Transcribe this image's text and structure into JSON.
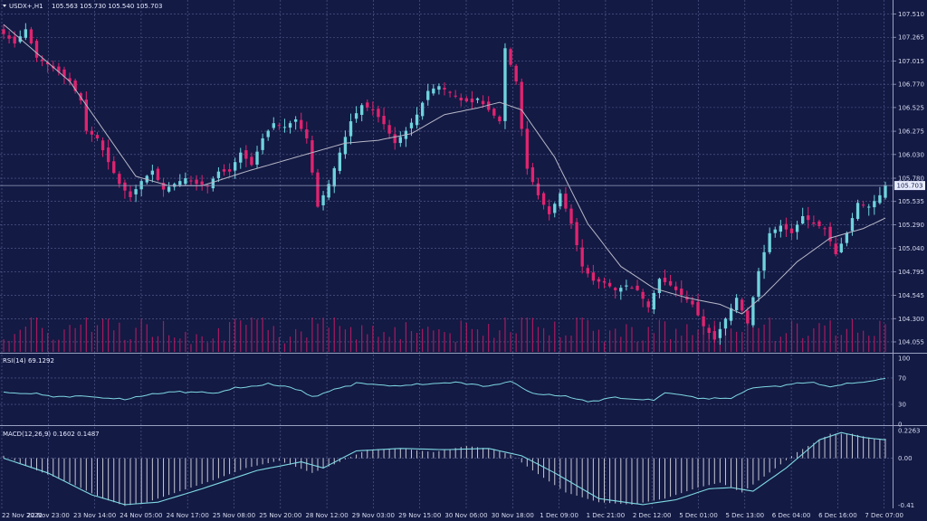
{
  "header": {
    "symbol": "USDX+,H1",
    "ohlc": "105.563 105.730 105.540 105.703"
  },
  "price_panel": {
    "current_price": "105.703",
    "price_ticks": [
      "107.510",
      "107.265",
      "107.015",
      "106.770",
      "106.525",
      "106.275",
      "106.030",
      "105.780",
      "105.535",
      "105.290",
      "105.040",
      "104.795",
      "104.545",
      "104.300",
      "104.055"
    ]
  },
  "rsi_panel": {
    "label": "RSI(14) 69.1292",
    "ticks": [
      "100",
      "70",
      "30",
      "0"
    ]
  },
  "macd_panel": {
    "label": "MACD(12,26,9) 0.1602 0.1487",
    "ticks": [
      "0.2263",
      "0.00",
      "-0.41"
    ]
  },
  "time_axis": [
    "22 Nov 2022",
    "22 Nov 23:00",
    "23 Nov 14:00",
    "24 Nov 05:00",
    "24 Nov 17:00",
    "25 Nov 08:00",
    "25 Nov 20:00",
    "28 Nov 12:00",
    "29 Nov 03:00",
    "29 Nov 15:00",
    "30 Nov 06:00",
    "30 Nov 18:00",
    "1 Dec 09:00",
    "1 Dec 21:00",
    "2 Dec 12:00",
    "5 Dec 01:00",
    "5 Dec 13:00",
    "6 Dec 04:00",
    "6 Dec 16:00",
    "7 Dec 07:00"
  ],
  "colors": {
    "background": "#131a44",
    "grid": "#5a6292",
    "bull": "#6fd3dd",
    "bear": "#e0246f",
    "ma": "#b8b8c8",
    "rsi": "#7fd8e2",
    "macd_signal": "#7fd8e2",
    "macd_hist": "#c8c8d4",
    "volume": "#c01b64"
  },
  "chart_data": {
    "type": "candlestick",
    "symbol": "USDX+",
    "timeframe": "H1",
    "y_range": [
      103.95,
      107.62
    ],
    "price_anchors": [
      [
        0,
        107.3
      ],
      [
        2,
        107.2
      ],
      [
        4,
        107.35
      ],
      [
        6,
        107.05
      ],
      [
        8,
        106.98
      ],
      [
        10,
        106.9
      ],
      [
        12,
        106.8
      ],
      [
        14,
        106.6
      ],
      [
        15,
        106.28
      ],
      [
        17,
        106.2
      ],
      [
        19,
        105.95
      ],
      [
        21,
        105.72
      ],
      [
        23,
        105.58
      ],
      [
        25,
        105.75
      ],
      [
        27,
        105.86
      ],
      [
        29,
        105.66
      ],
      [
        31,
        105.72
      ],
      [
        33,
        105.78
      ],
      [
        35,
        105.72
      ],
      [
        37,
        105.7
      ],
      [
        39,
        105.85
      ],
      [
        41,
        105.85
      ],
      [
        43,
        106.05
      ],
      [
        45,
        105.92
      ],
      [
        47,
        106.2
      ],
      [
        49,
        106.36
      ],
      [
        51,
        106.32
      ],
      [
        53,
        106.4
      ],
      [
        55,
        106.2
      ],
      [
        57,
        105.48
      ],
      [
        59,
        105.72
      ],
      [
        61,
        106.05
      ],
      [
        63,
        106.38
      ],
      [
        65,
        106.55
      ],
      [
        67,
        106.5
      ],
      [
        69,
        106.35
      ],
      [
        71,
        106.15
      ],
      [
        73,
        106.28
      ],
      [
        75,
        106.45
      ],
      [
        77,
        106.7
      ],
      [
        79,
        106.75
      ],
      [
        81,
        106.68
      ],
      [
        83,
        106.6
      ],
      [
        85,
        106.58
      ],
      [
        86,
        106.62
      ],
      [
        88,
        106.5
      ],
      [
        90,
        106.38
      ],
      [
        91,
        107.15
      ],
      [
        93,
        106.8
      ],
      [
        94,
        106.3
      ],
      [
        95,
        105.88
      ],
      [
        97,
        105.6
      ],
      [
        99,
        105.4
      ],
      [
        101,
        105.62
      ],
      [
        103,
        105.3
      ],
      [
        105,
        104.85
      ],
      [
        107,
        104.7
      ],
      [
        109,
        104.68
      ],
      [
        111,
        104.6
      ],
      [
        113,
        104.65
      ],
      [
        115,
        104.6
      ],
      [
        117,
        104.42
      ],
      [
        119,
        104.72
      ],
      [
        121,
        104.65
      ],
      [
        123,
        104.55
      ],
      [
        125,
        104.45
      ],
      [
        127,
        104.22
      ],
      [
        129,
        104.08
      ],
      [
        131,
        104.3
      ],
      [
        133,
        104.52
      ],
      [
        135,
        104.25
      ],
      [
        137,
        104.8
      ],
      [
        139,
        105.2
      ],
      [
        141,
        105.28
      ],
      [
        143,
        105.2
      ],
      [
        145,
        105.38
      ],
      [
        147,
        105.3
      ],
      [
        149,
        105.25
      ],
      [
        151,
        104.98
      ],
      [
        153,
        105.2
      ],
      [
        155,
        105.52
      ],
      [
        157,
        105.48
      ],
      [
        159,
        105.6
      ],
      [
        160,
        105.7
      ]
    ],
    "moving_average_anchors": [
      [
        0,
        107.4
      ],
      [
        12,
        106.8
      ],
      [
        18,
        106.3
      ],
      [
        24,
        105.8
      ],
      [
        30,
        105.7
      ],
      [
        36,
        105.7
      ],
      [
        44,
        105.85
      ],
      [
        50,
        105.95
      ],
      [
        56,
        106.05
      ],
      [
        62,
        106.15
      ],
      [
        68,
        106.18
      ],
      [
        74,
        106.25
      ],
      [
        80,
        106.45
      ],
      [
        86,
        106.52
      ],
      [
        90,
        106.58
      ],
      [
        94,
        106.5
      ],
      [
        100,
        106.0
      ],
      [
        106,
        105.3
      ],
      [
        112,
        104.85
      ],
      [
        118,
        104.62
      ],
      [
        124,
        104.52
      ],
      [
        130,
        104.45
      ],
      [
        134,
        104.35
      ],
      [
        138,
        104.55
      ],
      [
        144,
        104.9
      ],
      [
        150,
        105.15
      ],
      [
        156,
        105.25
      ],
      [
        160,
        105.36
      ]
    ],
    "rsi_anchors": [
      [
        0,
        48
      ],
      [
        5,
        46
      ],
      [
        10,
        42
      ],
      [
        14,
        43
      ],
      [
        18,
        40
      ],
      [
        22,
        37
      ],
      [
        26,
        44
      ],
      [
        32,
        50
      ],
      [
        38,
        47
      ],
      [
        42,
        54
      ],
      [
        48,
        60
      ],
      [
        52,
        56
      ],
      [
        56,
        42
      ],
      [
        60,
        52
      ],
      [
        64,
        63
      ],
      [
        70,
        58
      ],
      [
        76,
        60
      ],
      [
        82,
        64
      ],
      [
        88,
        58
      ],
      [
        92,
        65
      ],
      [
        96,
        46
      ],
      [
        102,
        42
      ],
      [
        106,
        34
      ],
      [
        110,
        40
      ],
      [
        114,
        38
      ],
      [
        118,
        36
      ],
      [
        120,
        48
      ],
      [
        124,
        43
      ],
      [
        128,
        38
      ],
      [
        132,
        40
      ],
      [
        136,
        55
      ],
      [
        140,
        58
      ],
      [
        146,
        63
      ],
      [
        150,
        57
      ],
      [
        154,
        62
      ],
      [
        158,
        66
      ],
      [
        160,
        69.13
      ]
    ],
    "rsi_value": 69.1292,
    "rsi_levels": [
      30,
      70
    ],
    "rsi_range": [
      0,
      100
    ],
    "macd_range": [
      -0.41,
      0.2263
    ],
    "macd_anchors": [
      [
        0,
        0.02
      ],
      [
        6,
        -0.1
      ],
      [
        12,
        -0.2
      ],
      [
        18,
        -0.33
      ],
      [
        22,
        -0.39
      ],
      [
        26,
        -0.36
      ],
      [
        32,
        -0.27
      ],
      [
        38,
        -0.18
      ],
      [
        44,
        -0.08
      ],
      [
        50,
        -0.02
      ],
      [
        56,
        -0.12
      ],
      [
        60,
        -0.05
      ],
      [
        66,
        0.07
      ],
      [
        72,
        0.08
      ],
      [
        78,
        0.05
      ],
      [
        84,
        0.1
      ],
      [
        88,
        0.08
      ],
      [
        92,
        0.03
      ],
      [
        96,
        -0.1
      ],
      [
        102,
        -0.28
      ],
      [
        108,
        -0.36
      ],
      [
        114,
        -0.38
      ],
      [
        120,
        -0.33
      ],
      [
        126,
        -0.24
      ],
      [
        130,
        -0.2
      ],
      [
        134,
        -0.28
      ],
      [
        138,
        -0.15
      ],
      [
        144,
        0.05
      ],
      [
        150,
        0.2
      ],
      [
        154,
        0.2
      ],
      [
        158,
        0.16
      ],
      [
        160,
        0.16
      ]
    ],
    "macd_signal_anchors": [
      [
        0,
        0.0
      ],
      [
        8,
        -0.12
      ],
      [
        16,
        -0.3
      ],
      [
        22,
        -0.38
      ],
      [
        28,
        -0.36
      ],
      [
        36,
        -0.25
      ],
      [
        46,
        -0.1
      ],
      [
        54,
        -0.03
      ],
      [
        58,
        -0.08
      ],
      [
        64,
        0.06
      ],
      [
        72,
        0.08
      ],
      [
        80,
        0.07
      ],
      [
        88,
        0.08
      ],
      [
        94,
        0.02
      ],
      [
        100,
        -0.12
      ],
      [
        108,
        -0.33
      ],
      [
        116,
        -0.38
      ],
      [
        122,
        -0.34
      ],
      [
        128,
        -0.25
      ],
      [
        132,
        -0.24
      ],
      [
        136,
        -0.27
      ],
      [
        142,
        -0.08
      ],
      [
        148,
        0.15
      ],
      [
        152,
        0.21
      ],
      [
        156,
        0.17
      ],
      [
        160,
        0.15
      ]
    ],
    "macd_value": 0.1602,
    "macd_signal_value": 0.1487
  }
}
